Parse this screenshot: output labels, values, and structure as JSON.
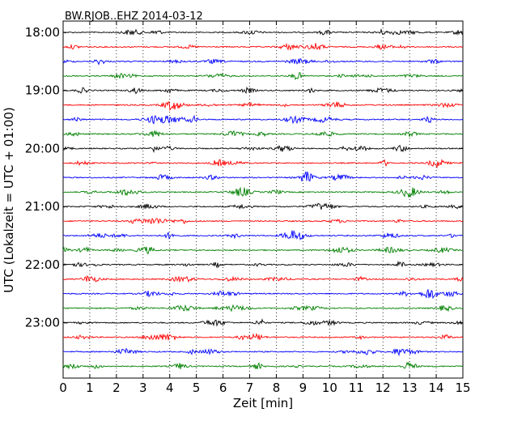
{
  "chart_data": {
    "type": "line",
    "title": "BW.RJOB..EHZ 2014-03-12",
    "xlabel": "Zeit  [min]",
    "ylabel": "UTC (Lokalzeit = UTC + 01:00)",
    "xlim": [
      0,
      15
    ],
    "x_ticks": [
      "0",
      "1",
      "2",
      "3",
      "4",
      "5",
      "6",
      "7",
      "8",
      "9",
      "10",
      "11",
      "12",
      "13",
      "14",
      "15"
    ],
    "y_tick_labels": [
      "18:00",
      "19:00",
      "20:00",
      "21:00",
      "22:00",
      "23:00"
    ],
    "grid": "vertical dotted at each minute",
    "trace_minutes": 15,
    "trace_count": 24,
    "trace_colors": [
      "#000000",
      "#ff0000",
      "#0000ff",
      "#008000"
    ]
  }
}
